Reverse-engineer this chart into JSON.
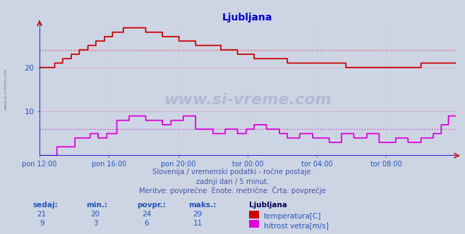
{
  "title": "Ljubljana",
  "background_color": "#cdd5e4",
  "plot_bg_color": "#cdd5e4",
  "x_tick_labels": [
    "pon 12:00",
    "pon 16:00",
    "pon 20:00",
    "tor 00:00",
    "tor 04:00",
    "tor 08:00"
  ],
  "x_tick_positions": [
    0.0,
    0.1667,
    0.3333,
    0.5,
    0.6667,
    0.8333
  ],
  "ylim": [
    0,
    30
  ],
  "yticks": [
    10,
    20
  ],
  "temp_color": "#cc0000",
  "wind_color": "#dd00dd",
  "avg_temp_color": "#dd4444",
  "avg_wind_color": "#cc44cc",
  "avg_temp": 24,
  "avg_wind": 6,
  "subtitle1": "Slovenija / vremenski podatki - ročne postaje.",
  "subtitle2": "zadnji dan / 5 minut.",
  "subtitle3": "Meritve: povprečne  Enote: metrične  Črta: povprečje",
  "subtitle_color": "#4455aa",
  "label_color": "#2255bb",
  "stats": {
    "sedaj_temp": 21,
    "min_temp": 20,
    "povpr_temp": 24,
    "maks_temp": 29,
    "sedaj_wind": 9,
    "min_wind": 3,
    "povpr_wind": 6,
    "maks_wind": 11
  }
}
